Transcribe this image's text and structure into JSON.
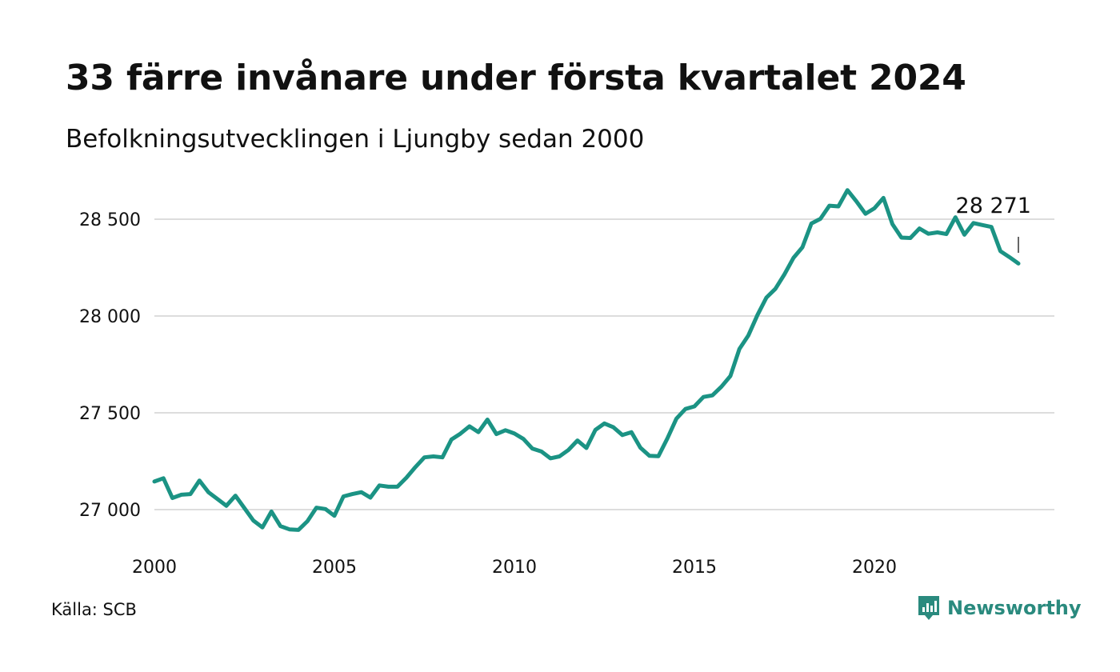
{
  "header": {
    "title": "33 färre invånare under första kvartalet 2024",
    "subtitle": "Befolkningsutvecklingen i Ljungby sedan 2000"
  },
  "footer": {
    "source": "Källa: SCB",
    "brand": "Newsworthy"
  },
  "colors": {
    "line": "#1b9384",
    "grid": "#dddddd",
    "brand": "#2a8a7e"
  },
  "chart_data": {
    "type": "line",
    "x_start": 2000.0,
    "x_step": 0.25,
    "x": [
      2000.0,
      2000.25,
      2000.5,
      2000.75,
      2001.0,
      2001.25,
      2001.5,
      2001.75,
      2002.0,
      2002.25,
      2002.5,
      2002.75,
      2003.0,
      2003.25,
      2003.5,
      2003.75,
      2004.0,
      2004.25,
      2004.5,
      2004.75,
      2005.0,
      2005.25,
      2005.5,
      2005.75,
      2006.0,
      2006.25,
      2006.5,
      2006.75,
      2007.0,
      2007.25,
      2007.5,
      2007.75,
      2008.0,
      2008.25,
      2008.5,
      2008.75,
      2009.0,
      2009.25,
      2009.5,
      2009.75,
      2010.0,
      2010.25,
      2010.5,
      2010.75,
      2011.0,
      2011.25,
      2011.5,
      2011.75,
      2012.0,
      2012.25,
      2012.5,
      2012.75,
      2013.0,
      2013.25,
      2013.5,
      2013.75,
      2014.0,
      2014.25,
      2014.5,
      2014.75,
      2015.0,
      2015.25,
      2015.5,
      2015.75,
      2016.0,
      2016.25,
      2016.5,
      2016.75,
      2017.0,
      2017.25,
      2017.5,
      2017.75,
      2018.0,
      2018.25,
      2018.5,
      2018.75,
      2019.0,
      2019.25,
      2019.5,
      2019.75,
      2020.0,
      2020.25,
      2020.5,
      2020.75,
      2021.0,
      2021.25,
      2021.5,
      2021.75,
      2022.0,
      2022.25,
      2022.5,
      2022.75,
      2023.0,
      2023.25,
      2023.5,
      2023.75,
      2024.0
    ],
    "y": [
      27145,
      27162,
      27060,
      27077,
      27080,
      27150,
      27090,
      27055,
      27020,
      27072,
      27008,
      26943,
      26908,
      26990,
      26915,
      26898,
      26895,
      26940,
      27010,
      27003,
      26968,
      27068,
      27080,
      27090,
      27062,
      27125,
      27118,
      27118,
      27165,
      27220,
      27270,
      27275,
      27270,
      27362,
      27392,
      27430,
      27400,
      27465,
      27390,
      27410,
      27393,
      27365,
      27315,
      27300,
      27265,
      27275,
      27308,
      27357,
      27318,
      27412,
      27445,
      27425,
      27385,
      27400,
      27320,
      27278,
      27276,
      27368,
      27470,
      27520,
      27533,
      27582,
      27590,
      27635,
      27690,
      27830,
      27900,
      28005,
      28095,
      28140,
      28215,
      28300,
      28355,
      28478,
      28502,
      28570,
      28566,
      28650,
      28592,
      28528,
      28556,
      28610,
      28475,
      28405,
      28403,
      28452,
      28425,
      28432,
      28423,
      28510,
      28420,
      28480,
      28470,
      28460,
      28335,
      28304,
      28271
    ],
    "x_ticks": [
      2000,
      2005,
      2010,
      2015,
      2020
    ],
    "x_tick_labels": [
      "2000",
      "2005",
      "2010",
      "2015",
      "2020"
    ],
    "y_ticks": [
      27000,
      27500,
      28000,
      28500
    ],
    "y_tick_labels": [
      "27 000",
      "27 500",
      "28 000",
      "28 500"
    ],
    "xlim": [
      2000,
      2025
    ],
    "ylim": [
      26800,
      28700
    ],
    "annotation": {
      "label": "28 271",
      "x": 2024.0,
      "y": 28271
    },
    "grid": true
  }
}
